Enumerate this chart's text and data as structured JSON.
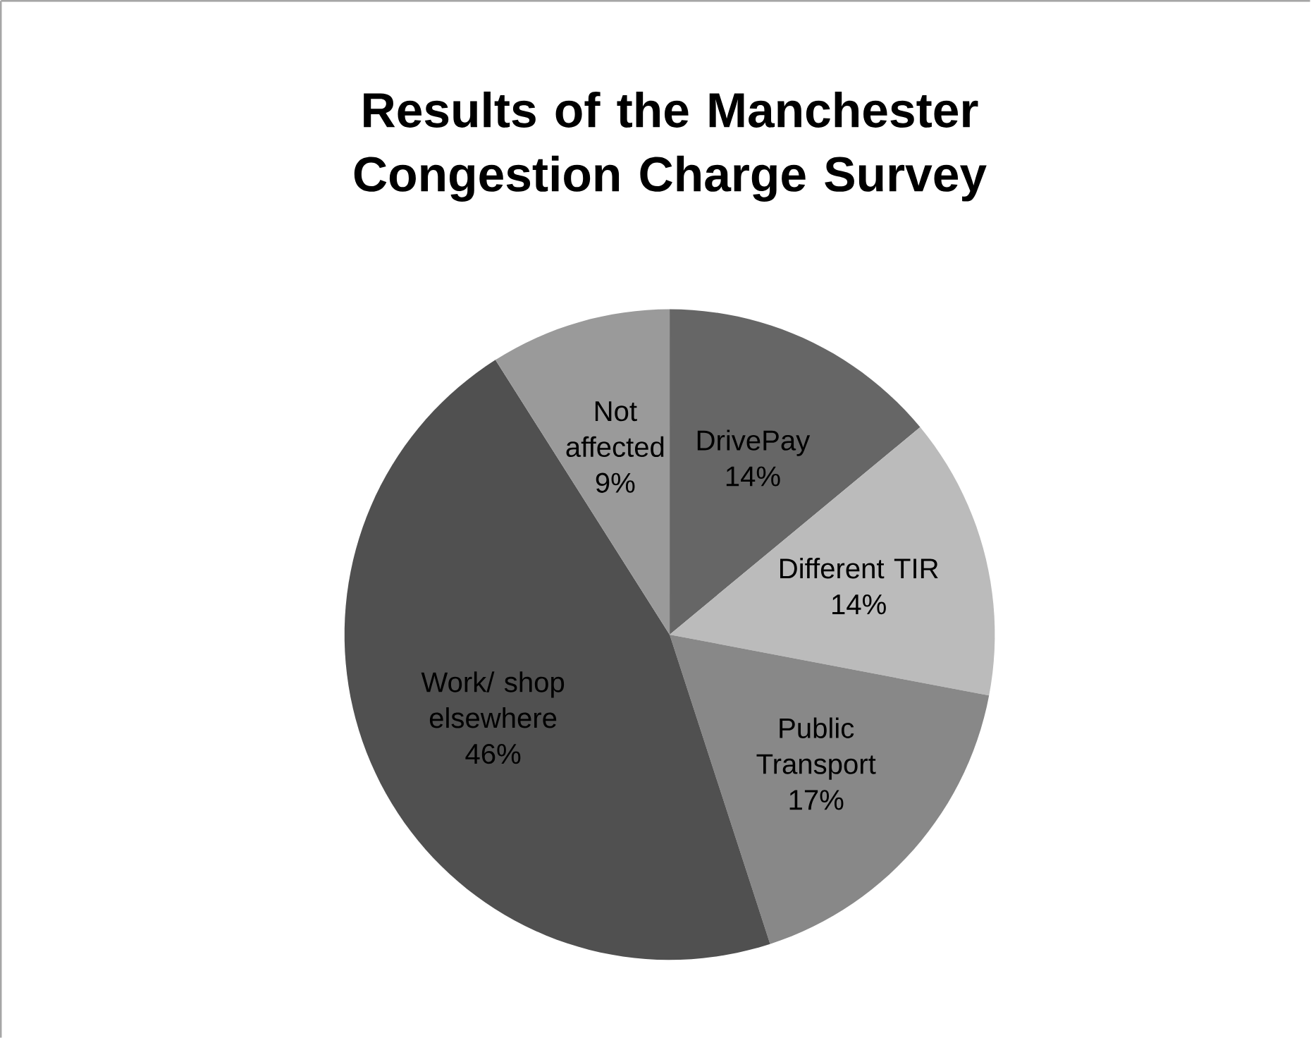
{
  "chart_data": {
    "type": "pie",
    "title": "Results of the Manchester Congestion Charge Survey",
    "categories": [
      "DrivePay",
      "Different TIR",
      "Public Transport",
      "Work/ shop elsewhere",
      "Not affected"
    ],
    "values": [
      14,
      14,
      17,
      46,
      9
    ],
    "colors": [
      "#666666",
      "#bbbbbb",
      "#888888",
      "#505050",
      "#9a9a9a"
    ],
    "value_labels": [
      "14%",
      "14%",
      "17%",
      "46%",
      "9%"
    ]
  }
}
